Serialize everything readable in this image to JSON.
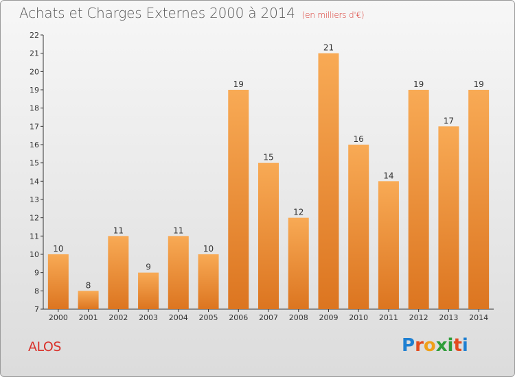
{
  "header": {
    "title": "Achats et Charges Externes 2000 à 2014",
    "subtitle": "(en milliers d'€)"
  },
  "footer": {
    "location": "ALOS",
    "logo_letters": [
      "P",
      "r",
      "o",
      "x",
      "i",
      "t",
      "i"
    ],
    "logo_colors": [
      "#1e7fd1",
      "#e34b1f",
      "#f0a019",
      "#2f9d3a",
      "#2f9d3a",
      "#e34b1f",
      "#1e7fd1"
    ]
  },
  "chart_data": {
    "type": "bar",
    "categories": [
      "2000",
      "2001",
      "2002",
      "2003",
      "2004",
      "2005",
      "2006",
      "2007",
      "2008",
      "2009",
      "2010",
      "2011",
      "2012",
      "2013",
      "2014"
    ],
    "values": [
      10,
      8,
      11,
      9,
      11,
      10,
      19,
      15,
      12,
      21,
      16,
      14,
      19,
      17,
      19
    ],
    "title": "Achats et Charges Externes 2000 à 2014",
    "xlabel": "",
    "ylabel": "",
    "ylim": [
      7,
      22
    ],
    "yticks": [
      7,
      8,
      9,
      10,
      11,
      12,
      13,
      14,
      15,
      16,
      17,
      18,
      19,
      20,
      21,
      22
    ],
    "grid": false,
    "data_labels": true,
    "colors": {
      "bar_light": "#f8aa55",
      "bar_dark": "#dc7520",
      "axis": "#333333"
    }
  }
}
